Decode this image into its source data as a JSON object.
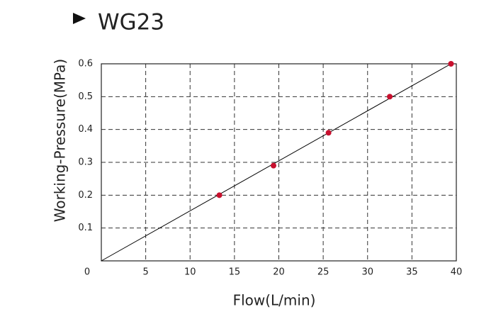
{
  "chart_data": {
    "type": "line",
    "title": "WG23",
    "xlabel": "Flow(L/min)",
    "ylabel": "Working-Pressure(MPa)",
    "series": [
      {
        "color": "#000000",
        "x": [
          0,
          39.4
        ],
        "values": [
          0,
          0.6
        ],
        "markers": false
      },
      {
        "color": "#c8102e",
        "x": [
          13.3,
          19.4,
          25.6,
          32.5,
          39.4
        ],
        "values": [
          0.2,
          0.29,
          0.39,
          0.5,
          0.6
        ],
        "markers": true,
        "line": false
      }
    ],
    "xlim": [
      0,
      40
    ],
    "xticks": [
      0,
      5,
      10,
      15,
      20,
      25,
      30,
      35,
      40
    ],
    "ylim": [
      0,
      0.6
    ],
    "yticks": [
      0.1,
      0.2,
      0.3,
      0.4,
      0.5,
      0.6
    ],
    "grid": true
  }
}
